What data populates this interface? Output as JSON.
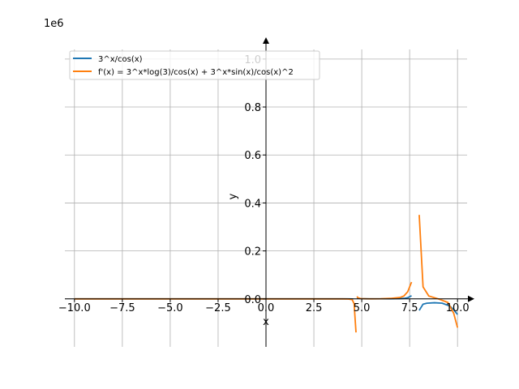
{
  "chart_data": {
    "type": "line",
    "offset_label": "1e6",
    "xlabel": "x",
    "ylabel": "y",
    "xlim": [
      -10.5,
      10.5
    ],
    "ylim": [
      -0.2,
      1.04
    ],
    "x_ticks": [
      -10.0,
      -7.5,
      -5.0,
      -2.5,
      0.0,
      2.5,
      5.0,
      7.5,
      10.0
    ],
    "x_tick_labels": [
      "−10.0",
      "−7.5",
      "−5.0",
      "−2.5",
      "0.0",
      "2.5",
      "5.0",
      "7.5",
      "10.0"
    ],
    "y_ticks": [
      0.0,
      0.2,
      0.4,
      0.6,
      0.8,
      1.0
    ],
    "y_tick_labels": [
      "0.0",
      "0.2",
      "0.4",
      "0.6",
      "0.8",
      "1.0"
    ],
    "grid": true,
    "legend_position": "top-left",
    "series": [
      {
        "name": "3^x/cos(x)",
        "color": "#1f77b4",
        "segments": [
          {
            "x": [
              -10.0,
              -5.0,
              0.0,
              3.0,
              4.0,
              4.3,
              4.5,
              4.55
            ],
            "y": [
              0.0,
              0.0,
              0.0,
              0.0,
              0.0,
              0.0,
              -0.0002,
              -0.0005
            ]
          },
          {
            "x": [
              4.75,
              4.9,
              5.0,
              5.2,
              5.4,
              5.6,
              6.0,
              6.5,
              7.0,
              7.2,
              7.4,
              7.6
            ],
            "y": [
              0.004,
              0.002,
              0.0007,
              0.0004,
              0.0002,
              0.0002,
              0.0002,
              0.0003,
              0.001,
              0.002,
              0.005,
              0.013
            ]
          },
          {
            "x": [
              8.0,
              8.2,
              8.4,
              8.8,
              9.2,
              9.6,
              9.8,
              10.0
            ],
            "y": [
              -0.048,
              -0.022,
              -0.018,
              -0.016,
              -0.018,
              -0.03,
              -0.045,
              -0.065
            ]
          }
        ]
      },
      {
        "name": "f'(x) = 3^x*log(3)/cos(x) + 3^x*sin(x)/cos(x)^2",
        "color": "#ff7f0e",
        "segments": [
          {
            "x": [
              -10.0,
              -5.0,
              0.0,
              3.0,
              4.0,
              4.3,
              4.5,
              4.6,
              4.7
            ],
            "y": [
              0.0,
              0.0,
              0.0,
              0.0,
              0.0,
              -0.0005,
              -0.003,
              -0.02,
              -0.14
            ]
          },
          {
            "x": [
              4.75,
              4.8,
              4.9,
              5.0,
              5.2,
              5.5,
              6.0,
              6.5,
              7.0,
              7.2,
              7.4,
              7.6
            ],
            "y": [
              0.01,
              0.005,
              0.002,
              0.001,
              0.0005,
              0.0003,
              0.0005,
              0.002,
              0.006,
              0.012,
              0.03,
              0.07
            ]
          },
          {
            "x": [
              8.0,
              8.2,
              8.5,
              9.0,
              9.5,
              9.8,
              10.0
            ],
            "y": [
              0.35,
              0.05,
              0.012,
              0.0,
              -0.015,
              -0.06,
              -0.12
            ]
          }
        ]
      }
    ]
  }
}
